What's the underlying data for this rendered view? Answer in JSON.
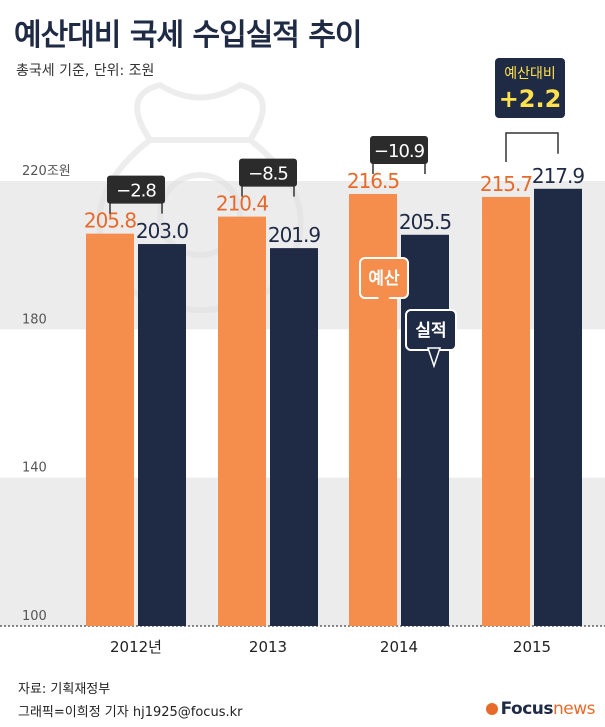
{
  "header": {
    "title": "예산대비 국세 수입실적 추이",
    "subtitle": "총국세 기준, 단위: 조원"
  },
  "footer": {
    "source": "자료: 기획재정부",
    "credit": "그래픽=이희정 기자 hj1925@focus.kr",
    "brand_main": "Focus",
    "brand_accent": "news"
  },
  "callout": {
    "line1": "예산대비",
    "line2": "+2.2"
  },
  "colors": {
    "budget": "#f58d4c",
    "actual": "#1f2a44",
    "budget_label": "#e86a2a",
    "actual_label": "#1f2a44",
    "band": "#ececec"
  },
  "chart_data": {
    "type": "bar",
    "categories": [
      "2012년",
      "2013",
      "2014",
      "2015"
    ],
    "series": [
      {
        "name": "예산",
        "values": [
          205.8,
          210.4,
          216.5,
          215.7
        ]
      },
      {
        "name": "실적",
        "values": [
          203.0,
          201.9,
          205.5,
          217.9
        ]
      }
    ],
    "value_labels": {
      "예산": [
        "205.8",
        "210.4",
        "216.5",
        "215.7"
      ],
      "실적": [
        "203.0",
        "201.9",
        "205.5",
        "217.9"
      ]
    },
    "differences": [
      "−2.8",
      "−8.5",
      "−10.9"
    ],
    "y_ticks": [
      100,
      140,
      180
    ],
    "y_tick_labels": [
      "100",
      "140",
      "180",
      "220조원"
    ],
    "y_top_tick": 220,
    "ylim": [
      100,
      226
    ],
    "legend": [
      "예산",
      "실적"
    ]
  }
}
